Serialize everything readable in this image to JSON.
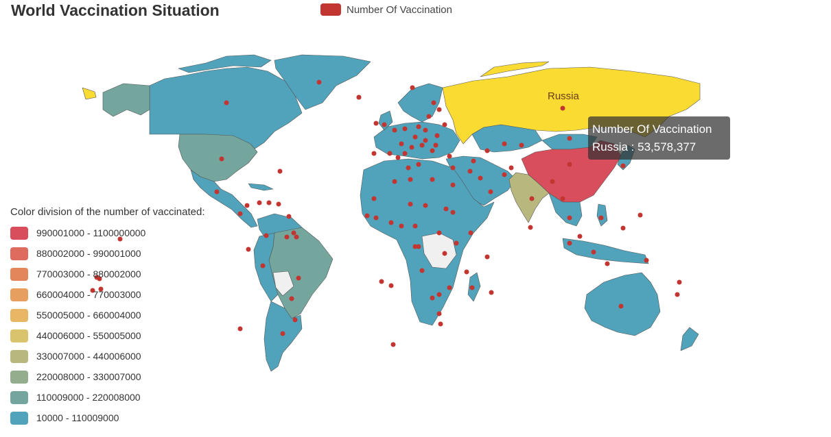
{
  "title": "World Vaccination Situation",
  "series_legend": {
    "label": "Number Of Vaccination",
    "color": "#c23531"
  },
  "visual_map": {
    "title": "Color division of the number of vaccinated:",
    "ranges": [
      {
        "label": "990001000 - 1100000000",
        "color": "#d94e5d"
      },
      {
        "label": "880002000 - 990001000",
        "color": "#de6c5e"
      },
      {
        "label": "770003000 - 880002000",
        "color": "#e2865c"
      },
      {
        "label": "660004000 - 770003000",
        "color": "#e69f5f"
      },
      {
        "label": "550005000 - 660004000",
        "color": "#e8b765"
      },
      {
        "label": "440006000 - 550005000",
        "color": "#d9c46d"
      },
      {
        "label": "330007000 - 440006000",
        "color": "#b8b87e"
      },
      {
        "label": "220008000 - 330007000",
        "color": "#94ad8c"
      },
      {
        "label": "110009000 - 220008000",
        "color": "#74a69e"
      },
      {
        "label": "10000 - 110009000",
        "color": "#50a3ba"
      }
    ]
  },
  "colors": {
    "default_country": "#50a3ba",
    "no_data": "#f0f0f0",
    "china": "#d94e5d",
    "russia": "#fadb32",
    "india": "#b8b87e",
    "usa_brazil": "#74a69e",
    "border": "#555555"
  },
  "highlight": {
    "country": "Russia",
    "label": "Russia"
  },
  "tooltip": {
    "series": "Number Of Vaccination",
    "country": "Russia",
    "value": "53,578,377",
    "line2": "Russia : 53,578,377"
  }
}
